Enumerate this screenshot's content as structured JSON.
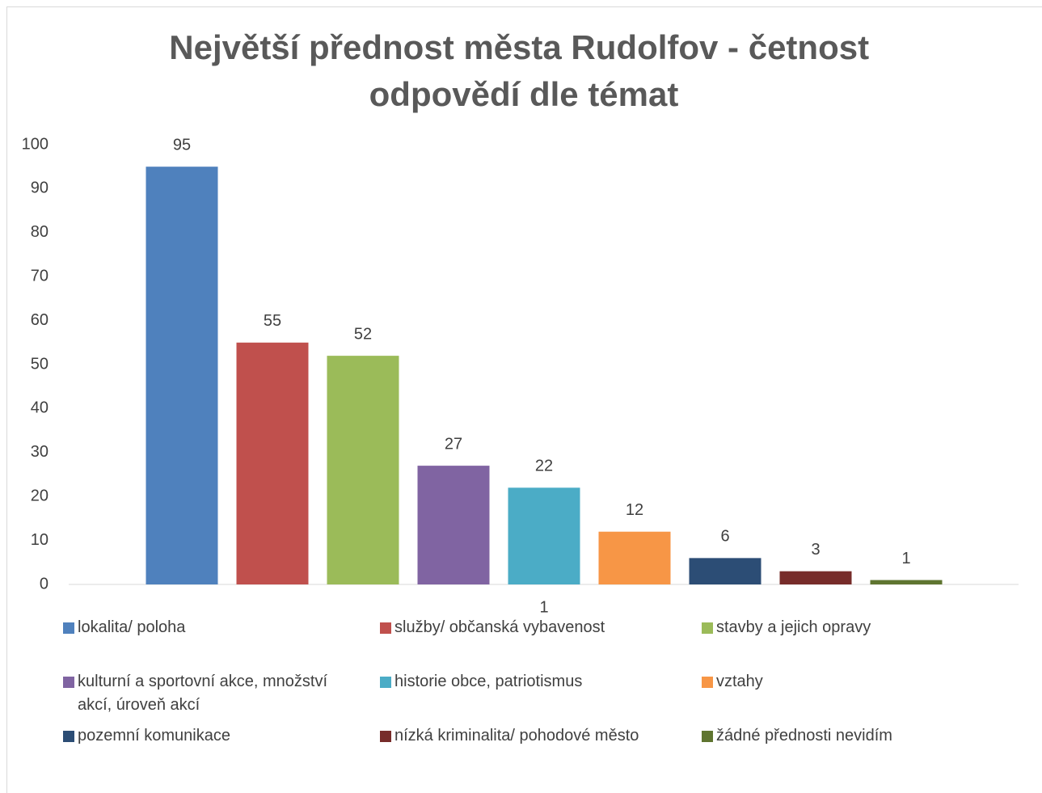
{
  "chart_data": {
    "type": "bar",
    "title": "Největší přednost města Rudolfov - četnost odpovědí dle témat",
    "categories": [
      "1"
    ],
    "series": [
      {
        "name": "lokalita/ poloha",
        "color": "#4f81bd",
        "values": [
          95
        ]
      },
      {
        "name": "služby/ občanská vybavenost",
        "color": "#c0504d",
        "values": [
          55
        ]
      },
      {
        "name": "stavby a jejich opravy",
        "color": "#9bbb59",
        "values": [
          52
        ]
      },
      {
        "name": "kulturní a sportovní akce, množství akcí, úroveň akcí",
        "color": "#8064a2",
        "values": [
          27
        ]
      },
      {
        "name": "historie obce, patriotismus",
        "color": "#4bacc6",
        "values": [
          22
        ]
      },
      {
        "name": "vztahy",
        "color": "#f79646",
        "values": [
          12
        ]
      },
      {
        "name": "pozemní komunikace",
        "color": "#2c4d75",
        "values": [
          6
        ]
      },
      {
        "name": "nízká kriminalita/ pohodové město",
        "color": "#772c2a",
        "values": [
          3
        ]
      },
      {
        "name": "žádné přednosti nevidím",
        "color": "#5f7530",
        "values": [
          1
        ]
      }
    ],
    "ylim": [
      0,
      100
    ],
    "yticks": [
      0,
      10,
      20,
      30,
      40,
      50,
      60,
      70,
      80,
      90,
      100
    ],
    "grid": false,
    "data_labels": true,
    "legend": "bottom"
  }
}
